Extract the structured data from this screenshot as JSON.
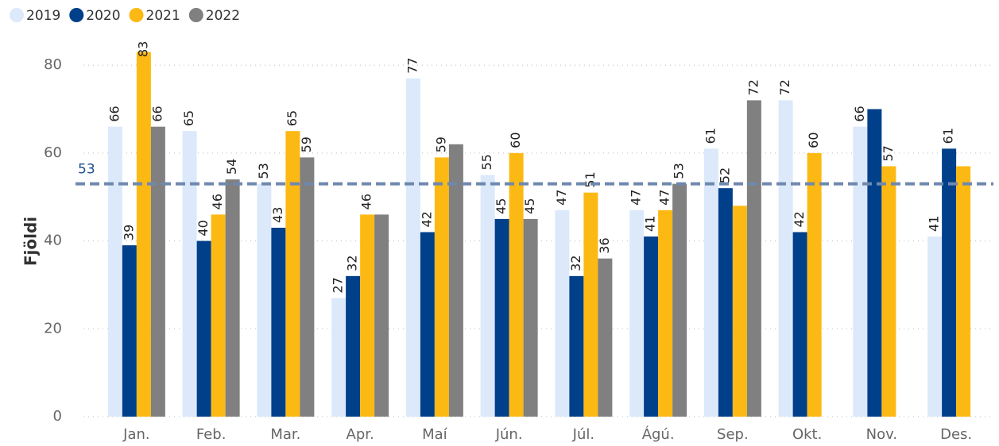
{
  "chart_data": {
    "type": "bar",
    "y_label": "Fjöldi",
    "categories": [
      "Jan.",
      "Feb.",
      "Mar.",
      "Apr.",
      "Maí",
      "Jún.",
      "Júl.",
      "Ágú.",
      "Sep.",
      "Okt.",
      "Nov.",
      "Des."
    ],
    "series": [
      {
        "name": "2019",
        "color": "#dbe9fb",
        "values": [
          66,
          65,
          53,
          27,
          77,
          55,
          47,
          47,
          61,
          72,
          66,
          41
        ],
        "value_labels": [
          "66",
          "65",
          "53",
          "27",
          "77",
          "55",
          "47",
          "47",
          "61",
          "72",
          "66",
          "41"
        ]
      },
      {
        "name": "2020",
        "color": "#003f8a",
        "values": [
          39,
          40,
          43,
          32,
          42,
          45,
          32,
          41,
          52,
          42,
          70,
          61
        ],
        "value_labels": [
          "39",
          "40",
          "43",
          "32",
          "42",
          "45",
          "32",
          "41",
          "52",
          "42",
          null,
          "61"
        ]
      },
      {
        "name": "2021",
        "color": "#fdb913",
        "values": [
          83,
          46,
          65,
          46,
          59,
          60,
          51,
          47,
          48,
          60,
          57,
          57
        ],
        "value_labels": [
          "83",
          "46",
          "65",
          "46",
          "59",
          "60",
          "51",
          "47",
          null,
          "60",
          "57",
          null
        ]
      },
      {
        "name": "2022",
        "color": "#808080",
        "values": [
          66,
          54,
          59,
          46,
          62,
          45,
          36,
          53,
          72,
          null,
          null,
          null
        ],
        "value_labels": [
          "66",
          "54",
          "59",
          null,
          null,
          "45",
          "36",
          "53",
          "72",
          null,
          null,
          null
        ]
      }
    ],
    "reference_line": {
      "value": 53,
      "label": "53",
      "color": "#6f88ad"
    },
    "ylim": [
      0,
      84
    ],
    "yticks": [
      0,
      20,
      40,
      60,
      80
    ],
    "grid": true,
    "legend": "top-left"
  }
}
